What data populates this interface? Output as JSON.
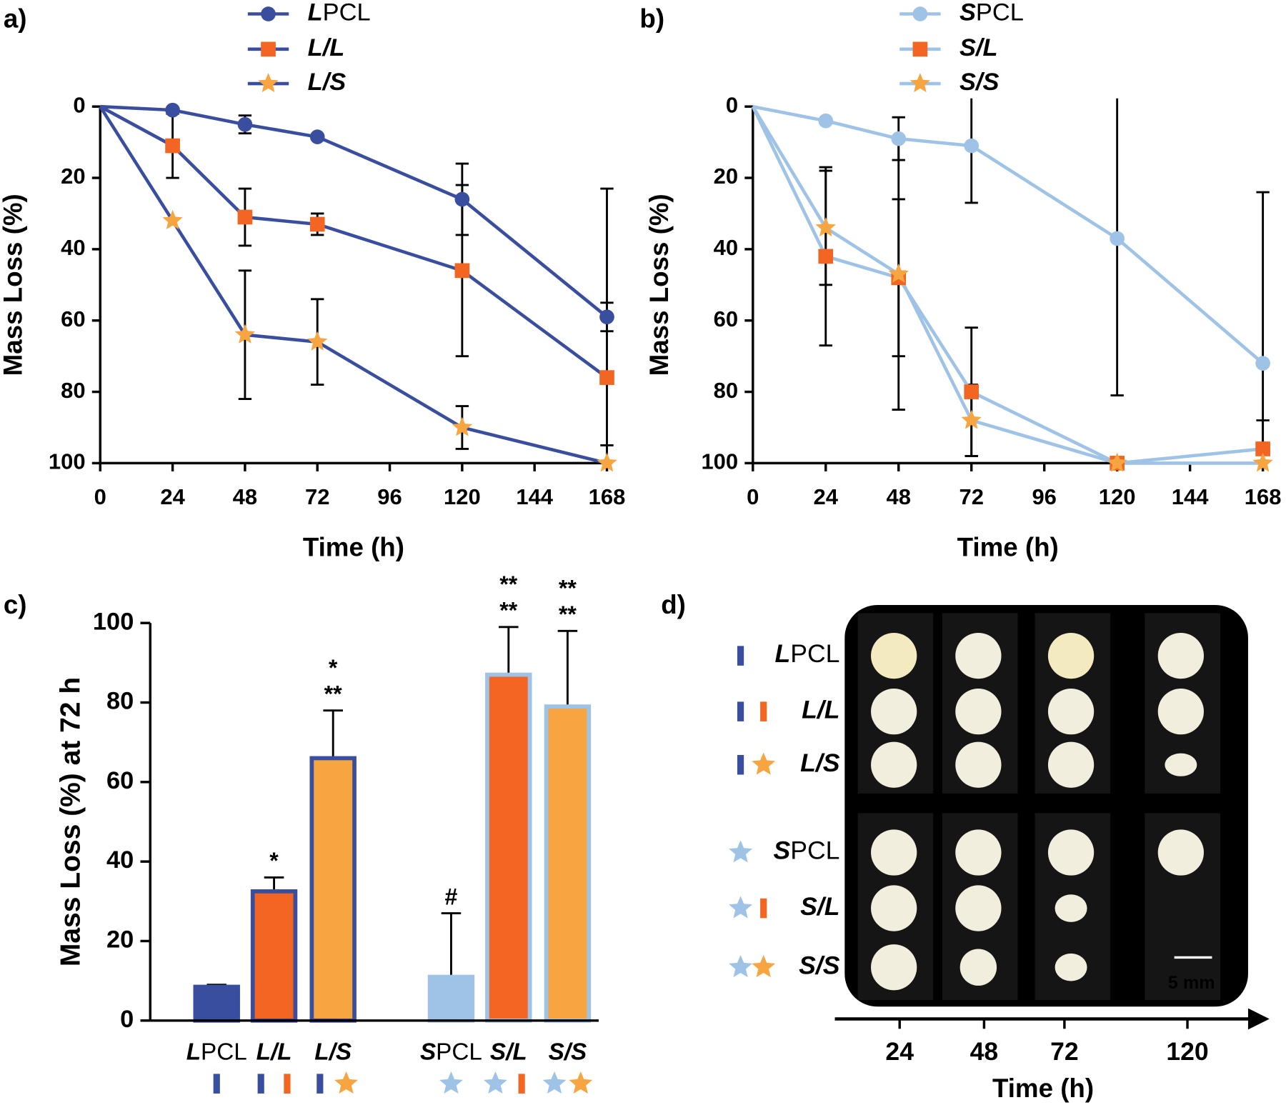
{
  "chart_data": [
    {
      "type": "line",
      "panel_label": "a)",
      "x_label": "Time (h)",
      "y_label": "Mass Loss (%)",
      "x": [
        0,
        24,
        48,
        72,
        120,
        168
      ],
      "xlim": [
        0,
        168
      ],
      "xticks": [
        0,
        24,
        48,
        72,
        96,
        120,
        144,
        168
      ],
      "ylim": [
        0,
        100
      ],
      "yticks": [
        0,
        20,
        40,
        60,
        80,
        100
      ],
      "y_inverted": true,
      "series": [
        {
          "name": "LPCL",
          "color": "#3a4ea0",
          "marker": "circle",
          "marker_color": "#3a4ea0",
          "values": [
            0,
            1,
            5,
            8.5,
            26,
            59
          ],
          "errors": [
            0,
            0,
            2.5,
            0,
            10,
            4
          ]
        },
        {
          "name": "L/L",
          "color": "#3a4ea0",
          "marker": "square",
          "marker_color": "#f26522",
          "values": [
            0,
            11,
            31,
            33,
            46,
            76
          ],
          "errors": [
            0,
            9,
            8,
            3,
            24,
            53
          ]
        },
        {
          "name": "L/S",
          "color": "#3a4ea0",
          "marker": "star",
          "marker_color": "#f7a541",
          "values": [
            0,
            32,
            64,
            66,
            90,
            100
          ],
          "errors": [
            0,
            0,
            18,
            12,
            6,
            5
          ]
        }
      ]
    },
    {
      "type": "line",
      "panel_label": "b)",
      "x_label": "Time (h)",
      "y_label": "Mass Loss (%)",
      "x": [
        0,
        24,
        48,
        72,
        120,
        168
      ],
      "xlim": [
        0,
        168
      ],
      "xticks": [
        0,
        24,
        48,
        72,
        96,
        120,
        144,
        168
      ],
      "ylim": [
        0,
        100
      ],
      "yticks": [
        0,
        20,
        40,
        60,
        80,
        100
      ],
      "y_inverted": true,
      "series": [
        {
          "name": "SPCL",
          "color": "#9ec3e6",
          "marker": "circle",
          "marker_color": "#9ec3e6",
          "values": [
            0,
            4,
            9,
            11,
            37,
            72
          ],
          "errors": [
            0,
            0,
            6,
            16,
            44,
            48
          ]
        },
        {
          "name": "S/L",
          "color": "#9ec3e6",
          "marker": "square",
          "marker_color": "#f26522",
          "values": [
            0,
            42,
            48,
            80,
            100,
            96
          ],
          "errors": [
            0,
            25,
            22,
            18,
            0,
            8
          ]
        },
        {
          "name": "S/S",
          "color": "#9ec3e6",
          "marker": "star",
          "marker_color": "#f7a541",
          "values": [
            0,
            34,
            47,
            88,
            100,
            100
          ],
          "errors": [
            0,
            16,
            38,
            10,
            0,
            0
          ]
        }
      ]
    },
    {
      "type": "bar",
      "panel_label": "c)",
      "y_label": "Mass Loss (%) at 72 h",
      "categories": [
        "LPCL",
        "L/L",
        "L/S",
        "SPCL",
        "S/L",
        "S/S"
      ],
      "values": [
        8.5,
        32.5,
        66,
        11,
        87,
        79
      ],
      "errors": [
        0.5,
        3.5,
        12,
        16,
        12,
        19
      ],
      "colors": [
        "#3a4ea0",
        "#f26522",
        "#f7a541",
        "#9ec3e6",
        "#f26522",
        "#f7a541"
      ],
      "edge_colors": [
        "#3a4ea0",
        "#3a4ea0",
        "#3a4ea0",
        "#9ec3e6",
        "#9ec3e6",
        "#9ec3e6"
      ],
      "ylim": [
        0,
        100
      ],
      "yticks": [
        0,
        20,
        40,
        60,
        80,
        100
      ],
      "annotations": [
        null,
        [
          {
            "text": "*",
            "color": "#000000"
          }
        ],
        [
          {
            "text": "**",
            "color": "#000000"
          },
          {
            "text": "*",
            "color": "#f26522"
          }
        ],
        [
          {
            "text": "#",
            "color": "#000000"
          }
        ],
        [
          {
            "text": "**",
            "color": "#000000"
          },
          {
            "text": "**",
            "color": "#f26522"
          }
        ],
        [
          {
            "text": "**",
            "color": "#000000"
          },
          {
            "text": "**",
            "color": "#f26522"
          }
        ]
      ]
    }
  ],
  "photo_panel": {
    "panel_label": "d)",
    "row_labels": [
      "LPCL",
      "L/L",
      "L/S",
      "SPCL",
      "S/L",
      "S/S"
    ],
    "time_ticks": [
      24,
      48,
      72,
      120
    ],
    "x_label": "Time (h)",
    "scale_bar": "5 mm"
  }
}
